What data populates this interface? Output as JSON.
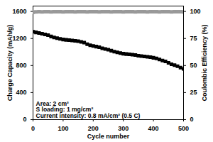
{
  "chart_data": {
    "type": "scatter",
    "x_label": "Cycle number",
    "y_label": "Charge Capacity (mAh/g)",
    "y2_label": "Coulombic Efficiency (%)",
    "annotations": [
      "Area: 2 cm²",
      "S loading: 1 mg/cm²",
      "Current intensity: 0.8 mA/cm² (0.5 C)"
    ],
    "x": [
      1,
      10,
      20,
      30,
      40,
      50,
      60,
      70,
      80,
      90,
      100,
      110,
      120,
      130,
      140,
      150,
      160,
      170,
      180,
      190,
      200,
      210,
      220,
      230,
      240,
      250,
      260,
      270,
      280,
      290,
      300,
      310,
      320,
      330,
      340,
      350,
      360,
      370,
      380,
      390,
      400,
      410,
      420,
      430,
      440,
      450,
      460,
      470,
      480,
      490,
      500
    ],
    "series": [
      {
        "color": "#000000",
        "marker": "square",
        "values": [
          1300,
          1290,
          1280,
          1270,
          1260,
          1250,
          1230,
          1215,
          1205,
          1195,
          1185,
          1180,
          1175,
          1170,
          1165,
          1160,
          1150,
          1140,
          1115,
          1100,
          1090,
          1080,
          1070,
          1055,
          1045,
          1035,
          1020,
          1005,
          995,
          985,
          975,
          970,
          965,
          960,
          955,
          945,
          940,
          935,
          930,
          925,
          915,
          905,
          890,
          875,
          860,
          840,
          820,
          805,
          790,
          770,
          750
        ]
      },
      {
        "color": "#999999",
        "marker": "square",
        "axis": "y2",
        "values": [
          99.2,
          99.6,
          99.7,
          99.6,
          99.8,
          99.7,
          99.6,
          99.7,
          99.8,
          99.7,
          99.6,
          99.7,
          99.8,
          99.7,
          99.6,
          99.7,
          99.8,
          99.7,
          99.6,
          99.7,
          99.8,
          99.7,
          99.6,
          99.7,
          99.8,
          99.7,
          99.6,
          99.7,
          99.8,
          99.7,
          99.6,
          99.7,
          99.8,
          99.7,
          99.6,
          99.7,
          99.8,
          99.7,
          99.6,
          99.7,
          99.8,
          99.7,
          99.6,
          99.7,
          99.8,
          99.7,
          99.6,
          99.7,
          99.8,
          99.7,
          99.6
        ]
      }
    ],
    "xlim": [
      0,
      500
    ],
    "xticks": [
      0,
      100,
      200,
      300,
      400,
      500
    ],
    "ylim": [
      0,
      1680
    ],
    "yticks": [
      0,
      400,
      800,
      1200,
      1600
    ],
    "y2lim": [
      0,
      105
    ],
    "y2ticks": [
      0,
      25,
      50,
      75,
      100
    ]
  }
}
